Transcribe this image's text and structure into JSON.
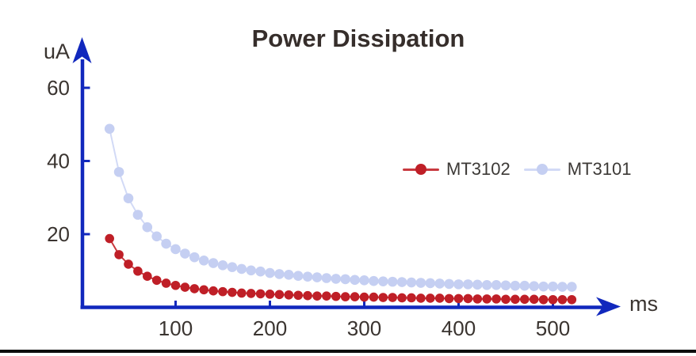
{
  "chart_data": {
    "type": "line",
    "title": "Power Dissipation",
    "xlabel": "ms",
    "ylabel": "uA",
    "x_ticks": [
      100,
      200,
      300,
      400,
      500
    ],
    "y_ticks": [
      20,
      40,
      60
    ],
    "xlim": [
      0,
      570
    ],
    "ylim": [
      0,
      70
    ],
    "grid": false,
    "legend_position": "center-right",
    "x": [
      30,
      40,
      50,
      60,
      70,
      80,
      90,
      100,
      110,
      120,
      130,
      140,
      150,
      160,
      170,
      180,
      190,
      200,
      210,
      220,
      230,
      240,
      250,
      260,
      270,
      280,
      290,
      300,
      310,
      320,
      330,
      340,
      350,
      360,
      370,
      380,
      390,
      400,
      410,
      420,
      430,
      440,
      450,
      460,
      470,
      480,
      490,
      500,
      510,
      520
    ],
    "series": [
      {
        "name": "MT3102",
        "dot_color": "#bf1f27",
        "line_color": "#c8393f",
        "values": [
          18.8,
          14.4,
          11.8,
          9.9,
          8.5,
          7.4,
          6.6,
          6.0,
          5.5,
          5.1,
          4.8,
          4.5,
          4.3,
          4.1,
          3.9,
          3.8,
          3.7,
          3.6,
          3.5,
          3.4,
          3.3,
          3.2,
          3.1,
          3.1,
          3.0,
          2.9,
          2.9,
          2.8,
          2.8,
          2.7,
          2.7,
          2.6,
          2.6,
          2.5,
          2.5,
          2.5,
          2.4,
          2.4,
          2.4,
          2.3,
          2.3,
          2.3,
          2.2,
          2.2,
          2.2,
          2.2,
          2.1,
          2.1,
          2.1,
          2.1
        ]
      },
      {
        "name": "MT3101",
        "dot_color": "#c5cff2",
        "line_color": "#d2daf6",
        "values": [
          48.8,
          37.0,
          29.8,
          25.3,
          21.9,
          19.4,
          17.4,
          15.9,
          14.7,
          13.7,
          12.8,
          12.1,
          11.5,
          11.0,
          10.5,
          10.1,
          9.8,
          9.4,
          9.1,
          8.9,
          8.6,
          8.4,
          8.2,
          8.0,
          7.8,
          7.7,
          7.5,
          7.4,
          7.2,
          7.1,
          7.0,
          6.9,
          6.8,
          6.7,
          6.6,
          6.5,
          6.4,
          6.3,
          6.3,
          6.2,
          6.1,
          6.1,
          6.0,
          5.9,
          5.9,
          5.8,
          5.7,
          5.7,
          5.6,
          5.6
        ]
      }
    ],
    "colors": {
      "axis": "#1128bd",
      "title": "#362e2b",
      "tick_text": "#3a3430"
    }
  }
}
